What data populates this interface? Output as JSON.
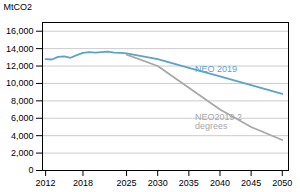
{
  "chart_data": {
    "type": "line",
    "x": [
      2012,
      2013,
      2014,
      2015,
      2016,
      2017,
      2018,
      2019,
      2020,
      2021,
      2022,
      2023,
      2024,
      2025,
      2030,
      2035,
      2040,
      2045,
      2050
    ],
    "series": [
      {
        "name": "NEO 2019",
        "color": "#5ba3c9",
        "values": [
          12800,
          12750,
          13050,
          13100,
          12950,
          13250,
          13500,
          13600,
          13550,
          13600,
          13650,
          13550,
          13500,
          13450,
          12800,
          11800,
          10800,
          9800,
          8800
        ]
      },
      {
        "name": "NEO2019 2\ndegrees",
        "color": "#a8a8a8",
        "values": [
          null,
          null,
          null,
          null,
          null,
          null,
          null,
          null,
          null,
          null,
          null,
          null,
          null,
          13300,
          12000,
          9500,
          7000,
          5000,
          3500
        ]
      }
    ],
    "annotations": [
      {
        "text": "NEO 2019",
        "x": 2036,
        "y": 11700,
        "color": "#5ba3c9"
      },
      {
        "text": "NEO2019 2\ndegrees",
        "x": 2036,
        "y": 5600,
        "color": "#a8a8a8"
      }
    ],
    "ylabel": "MtCO2",
    "xlim": [
      2011.5,
      2051
    ],
    "xticks": [
      2012,
      2018,
      2025,
      2030,
      2035,
      2040,
      2045,
      2050
    ],
    "ylim": [
      0,
      17000
    ],
    "yticks": [
      0,
      {
        "value": 2000,
        "label": "2,000"
      },
      {
        "value": 4000,
        "label": "4,000"
      },
      {
        "value": 6000,
        "label": "6,000"
      },
      {
        "value": 8000,
        "label": "8,000"
      },
      {
        "value": 10000,
        "label": "10,000"
      },
      {
        "value": 12000,
        "label": "12,000"
      },
      {
        "value": 14000,
        "label": "14,000"
      },
      {
        "value": 16000,
        "label": "16,000"
      }
    ],
    "grid": true
  }
}
